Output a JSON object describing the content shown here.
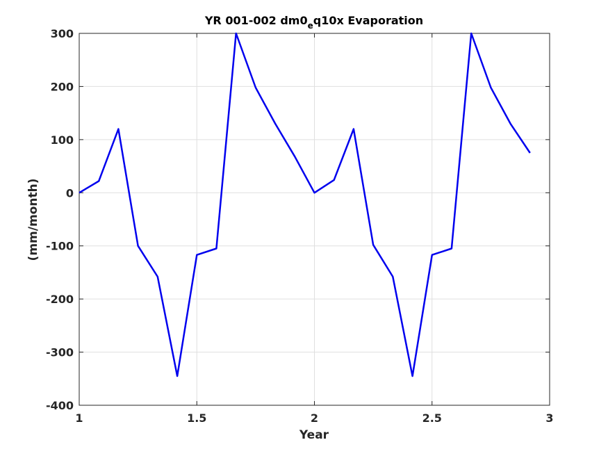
{
  "chart_data": {
    "type": "line",
    "title": {
      "prefix": "YR 001-002 dm0",
      "subscript": "e",
      "suffix": "q10x Evaporation"
    },
    "xlabel": "Year",
    "ylabel": "(mm/month)",
    "xlim": [
      1,
      3
    ],
    "ylim": [
      -400,
      300
    ],
    "xticks": [
      1,
      1.5,
      2,
      2.5,
      3
    ],
    "xtick_labels": [
      "1",
      "1.5",
      "2",
      "2.5",
      "3"
    ],
    "yticks": [
      300,
      200,
      100,
      0,
      -100,
      -200,
      -300,
      -400
    ],
    "ytick_labels": [
      "300",
      "200",
      "100",
      "0",
      "-100",
      "-200",
      "-300",
      "-400"
    ],
    "grid": true,
    "series": [
      {
        "color": "#0000ee",
        "x": [
          1.0,
          1.0833,
          1.1667,
          1.25,
          1.3333,
          1.4167,
          1.5,
          1.5833,
          1.6667,
          1.75,
          1.8333,
          1.9167,
          2.0,
          2.0833,
          2.1667,
          2.25,
          2.3333,
          2.4167,
          2.5,
          2.5833,
          2.6667,
          2.75,
          2.8333,
          2.9167
        ],
        "values": [
          0,
          22,
          120,
          -100,
          -158,
          -345,
          -117,
          -105,
          300,
          198,
          130,
          68,
          0,
          24,
          120,
          -98,
          -158,
          -345,
          -117,
          -105,
          300,
          198,
          130,
          75
        ]
      }
    ]
  }
}
